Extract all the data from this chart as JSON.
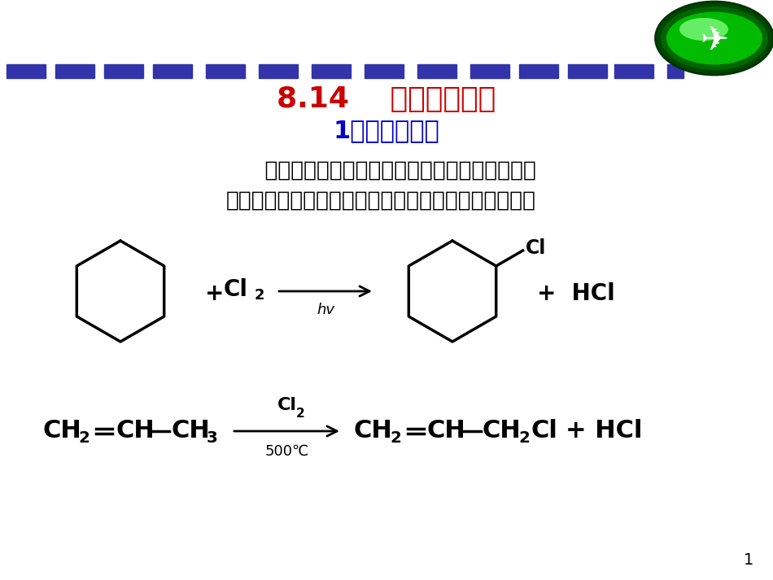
{
  "title1": "8.14    卤代烃的制备",
  "title2": "1、烷烃的卤代",
  "title1_color": "#CC0000",
  "title2_color": "#0000CC",
  "body_text1": "    反应不易停留在一元取代阶段，通常得到多卤代",
  "body_text2": "的混合物。但可用于结构较为特殊的烷烃制取一卤烷。",
  "bg_color": "#FFFFFF",
  "dash_color": "#3333AA",
  "page_number": "1"
}
